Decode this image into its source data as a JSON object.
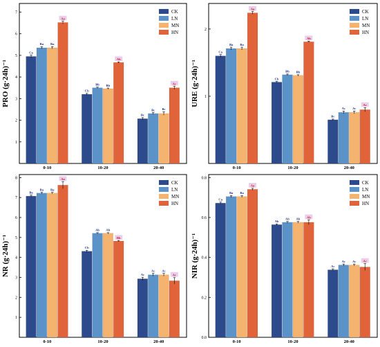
{
  "colors": {
    "CK": "#2d4a8c",
    "LN": "#5b93c8",
    "MN": "#f5b370",
    "HN": "#e0633a",
    "highlight": "#e8c6ea",
    "sig_text_blue": "#1c2f86",
    "sig_text_red": "#c0201a"
  },
  "chart_data": [
    {
      "type": "bar",
      "panel": "top-left",
      "ylabel": "PRO (g·24h)⁻¹",
      "ylim": [
        0,
        7.4
      ],
      "yticks": [
        "1",
        "2",
        "3",
        "4",
        "5",
        "6",
        "7"
      ],
      "categories": [
        "0-10",
        "10-20",
        "20-40"
      ],
      "legend": "top-right",
      "series": [
        {
          "name": "CK",
          "values": [
            4.95,
            3.2,
            2.07
          ],
          "errors": [
            0.06,
            0.04,
            0.05
          ],
          "labels": [
            "Ca",
            "Cb",
            "Bc"
          ]
        },
        {
          "name": "LN",
          "values": [
            5.35,
            3.5,
            2.31
          ],
          "errors": [
            0.05,
            0.03,
            0.04
          ],
          "labels": [
            "Ba",
            "Bb",
            "Bc"
          ]
        },
        {
          "name": "MN",
          "values": [
            5.35,
            3.46,
            2.31
          ],
          "errors": [
            0.05,
            0.03,
            0.08
          ],
          "labels": [
            "Ba",
            "Bb",
            "Bc"
          ]
        },
        {
          "name": "HN",
          "values": [
            6.52,
            4.67,
            3.5
          ],
          "errors": [
            0.06,
            0.03,
            0.07
          ],
          "labels": [
            "Aa",
            "Ab",
            "Ac"
          ]
        }
      ]
    },
    {
      "type": "bar",
      "panel": "top-right",
      "ylabel": "URE (g·24h)⁻¹",
      "ylim": [
        0,
        2.38
      ],
      "yticks": [
        "1",
        "2"
      ],
      "categories": [
        "0-10",
        "10-20",
        "20-40"
      ],
      "legend": "top-right",
      "series": [
        {
          "name": "CK",
          "values": [
            1.6,
            1.21,
            0.65
          ],
          "errors": [
            0.02,
            0.01,
            0.01
          ],
          "labels": [
            "Ca",
            "Cb",
            "Bc"
          ]
        },
        {
          "name": "LN",
          "values": [
            1.71,
            1.32,
            0.76
          ],
          "errors": [
            0.02,
            0.01,
            0.02
          ],
          "labels": [
            "Ba",
            "Bb",
            "Ac"
          ]
        },
        {
          "name": "MN",
          "values": [
            1.71,
            1.31,
            0.76
          ],
          "errors": [
            0.02,
            0.01,
            0.02
          ],
          "labels": [
            "Ba",
            "Bb",
            "Ac"
          ]
        },
        {
          "name": "HN",
          "values": [
            2.24,
            1.81,
            0.8
          ],
          "errors": [
            0.02,
            0.01,
            0.03
          ],
          "labels": [
            "Aa",
            "Ab",
            "Ac"
          ]
        }
      ]
    },
    {
      "type": "bar",
      "panel": "bottom-left",
      "ylabel": "NR (g·24h)⁻¹",
      "ylim": [
        0,
        8.15
      ],
      "yticks": [
        "1",
        "2",
        "3",
        "4",
        "5",
        "6",
        "7",
        "8"
      ],
      "categories": [
        "0-10",
        "10-20",
        "20-40"
      ],
      "legend": "top-right",
      "series": [
        {
          "name": "CK",
          "values": [
            7.07,
            4.31,
            2.93
          ],
          "errors": [
            0.05,
            0.05,
            0.08
          ],
          "labels": [
            "Ba",
            "Cb",
            "Ac"
          ]
        },
        {
          "name": "LN",
          "values": [
            7.22,
            5.21,
            3.13
          ],
          "errors": [
            0.04,
            0.03,
            0.07
          ],
          "labels": [
            "Ba",
            "Ab",
            "Ac"
          ]
        },
        {
          "name": "MN",
          "values": [
            7.22,
            5.21,
            3.13
          ],
          "errors": [
            0.04,
            0.03,
            0.07
          ],
          "labels": [
            "Ba",
            "Ab",
            "Ac"
          ]
        },
        {
          "name": "HN",
          "values": [
            7.62,
            4.82,
            2.83
          ],
          "errors": [
            0.18,
            0.03,
            0.16
          ],
          "labels": [
            "Aa",
            "Bb",
            "Ac"
          ]
        }
      ]
    },
    {
      "type": "bar",
      "panel": "bottom-right",
      "ylabel": "NIR (g·24h)⁻¹",
      "ylim": [
        0,
        0.815
      ],
      "yticks": [
        "0.0",
        "0.2",
        "0.4",
        "0.6",
        "0.8"
      ],
      "categories": [
        "0-10",
        "10-20",
        "20-40"
      ],
      "legend": "top-right",
      "series": [
        {
          "name": "CK",
          "values": [
            0.672,
            0.564,
            0.338
          ],
          "errors": [
            0.005,
            0.004,
            0.005
          ],
          "labels": [
            "Ca",
            "Ab",
            "Ac"
          ]
        },
        {
          "name": "LN",
          "values": [
            0.705,
            0.576,
            0.362
          ],
          "errors": [
            0.005,
            0.004,
            0.005
          ],
          "labels": [
            "Ba",
            "Ab",
            "Ac"
          ]
        },
        {
          "name": "MN",
          "values": [
            0.705,
            0.576,
            0.362
          ],
          "errors": [
            0.005,
            0.004,
            0.005
          ],
          "labels": [
            "Ba",
            "Ab",
            "Ac"
          ]
        },
        {
          "name": "HN",
          "values": [
            0.741,
            0.576,
            0.352
          ],
          "errors": [
            0.005,
            0.012,
            0.017
          ],
          "labels": [
            "Aa",
            "Ab",
            "Ac"
          ]
        }
      ]
    }
  ]
}
